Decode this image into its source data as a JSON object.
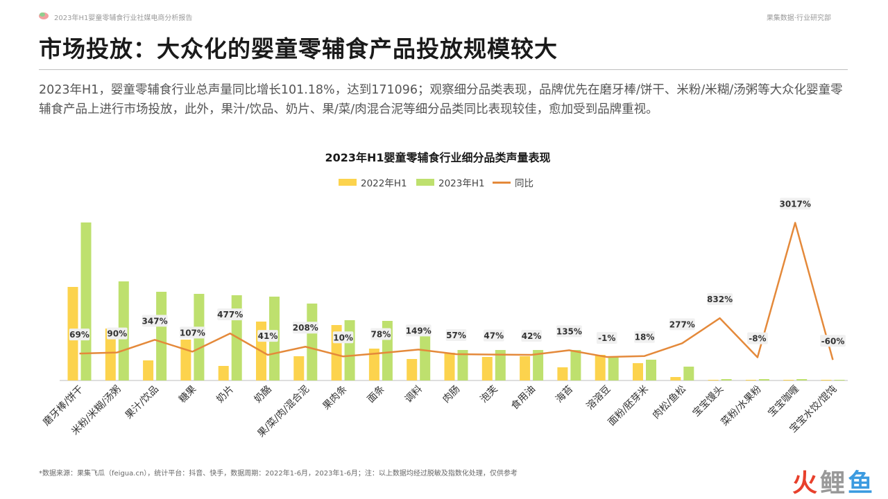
{
  "header": {
    "report_title": "2023年H1婴童零辅食行业社媒电商分析报告",
    "brand": "果集数据·行业研究部"
  },
  "page_title": "市场投放：大众化的婴童零辅食产品投放规模较大",
  "summary": "2023年H1，婴童零辅食行业总声量同比增长101.18%，达到171096；观察细分品类表现，品牌优先在磨牙棒/饼干、米粉/米糊/汤粥等大众化婴童零辅食产品上进行市场投放，此外，果汁/饮品、奶片、果/菜/肉混合泥等细分品类同比表现较佳，愈加受到品牌重视。",
  "chart_data": {
    "type": "bar",
    "title": "2023年H1婴童零辅食行业细分品类声量表现",
    "categories": [
      "磨牙棒/饼干",
      "米粉/米糊/汤粥",
      "果汁/饮品",
      "糖果",
      "奶片",
      "奶酪",
      "果/菜/肉/混合泥",
      "果肉条",
      "面条",
      "调料",
      "肉肠",
      "泡芙",
      "食用油",
      "海苔",
      "溶溶豆",
      "面粉/胚芽米",
      "肉松/鱼松",
      "宝宝馒头",
      "菜粉/水果粉",
      "宝宝咖喱",
      "宝宝水饺/馄饨"
    ],
    "series": [
      {
        "name": "2022年H1",
        "color": "#fcd34d",
        "values": [
          135,
          75,
          29,
          59,
          21,
          85,
          35,
          80,
          46,
          31,
          40,
          34,
          35,
          19,
          37,
          25,
          5,
          1,
          1,
          1,
          1
        ]
      },
      {
        "name": "2023年H1",
        "color": "#bee06e",
        "values": [
          228,
          143,
          128,
          125,
          123,
          121,
          111,
          87,
          86,
          78,
          44,
          44,
          44,
          44,
          33,
          30,
          20,
          2,
          2,
          2,
          1
        ]
      },
      {
        "name": "同比",
        "color": "#e4893a",
        "type": "line",
        "values": [
          69,
          90,
          347,
          107,
          477,
          41,
          208,
          10,
          78,
          149,
          57,
          47,
          42,
          135,
          -1,
          18,
          277,
          832,
          -8,
          3017,
          -60
        ],
        "labels": [
          "69%",
          "90%",
          "347%",
          "107%",
          "477%",
          "41%",
          "208%",
          "10%",
          "78%",
          "149%",
          "57%",
          "47%",
          "42%",
          "135%",
          "-1%",
          "18%",
          "277%",
          "832%",
          "-8%",
          "3017%",
          "-60%"
        ]
      }
    ],
    "legend": [
      "2022年H1",
      "2023年H1",
      "同比"
    ],
    "legend_position": "top",
    "grid": false
  },
  "footnote": "*数据来源：果集飞瓜（feigua.cn），统计平台：抖音、快手，数据周期：2022年1-6月，2023年1-6月；注：以上数据均经过脱敏及指数化处理，仅供参考",
  "watermark": {
    "part1": "火",
    "part2": "鲤",
    "part3": "鱼"
  }
}
